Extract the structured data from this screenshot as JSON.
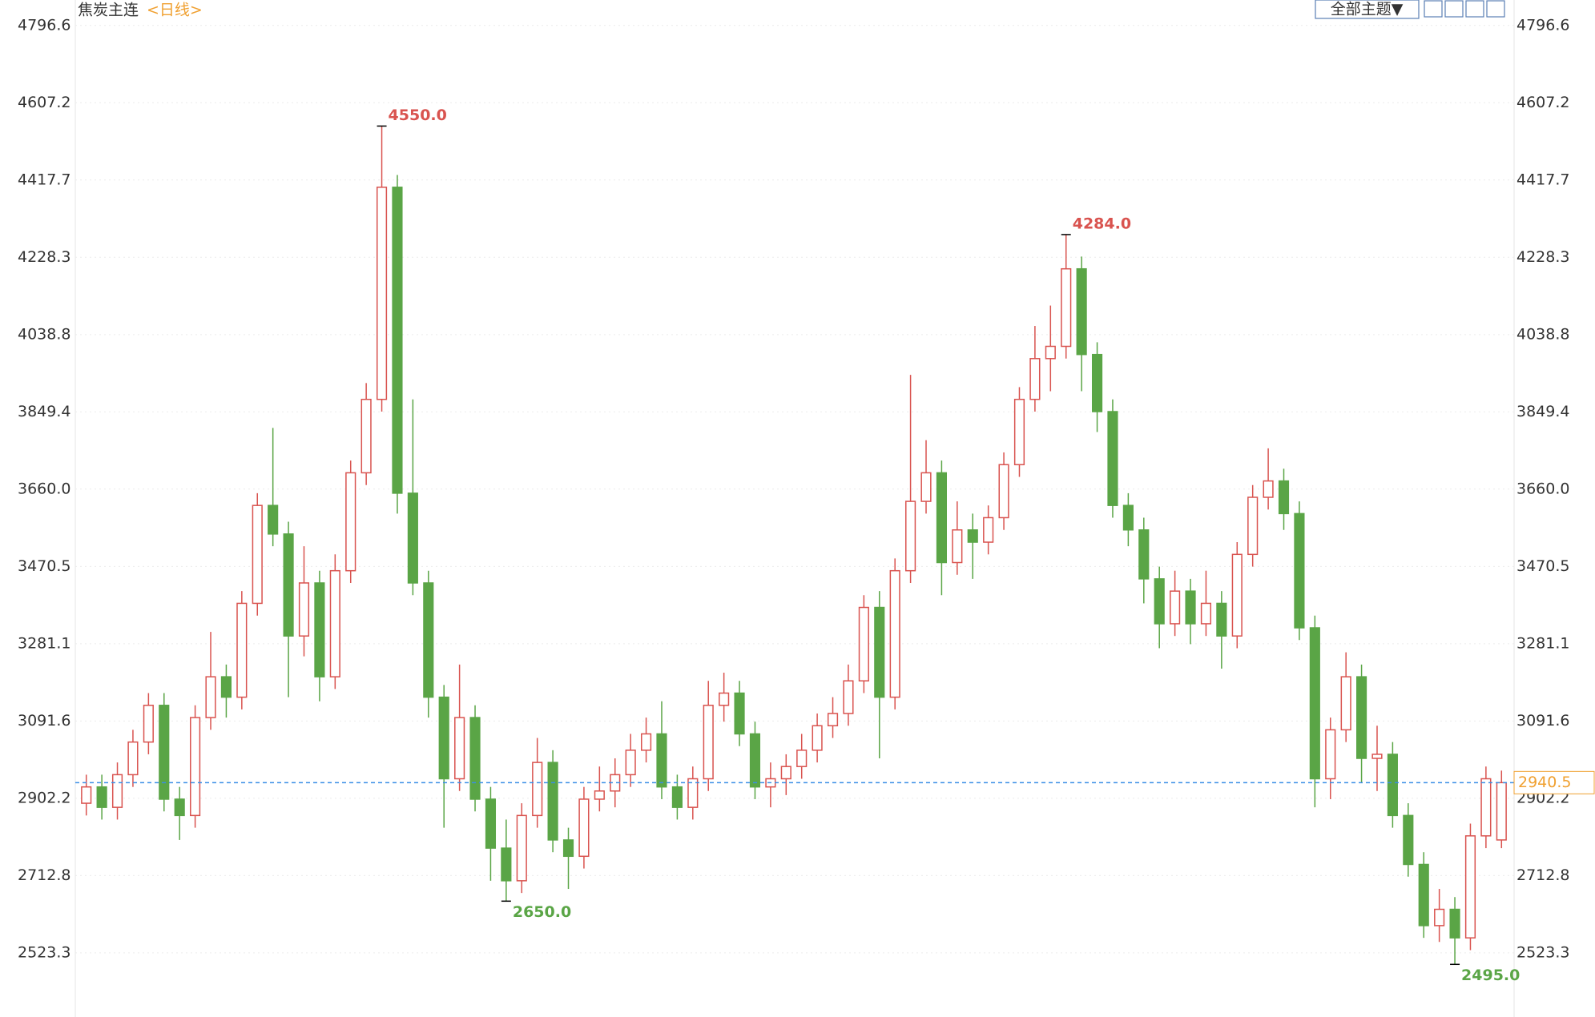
{
  "header": {
    "title": "焦炭主连",
    "period": "<日线>",
    "theme_button": "全部主题▼"
  },
  "chart_data": {
    "type": "candlestick",
    "up_color": "#d9534f",
    "down_color": "#5aa546",
    "ylim": [
      2366,
      4859
    ],
    "yticks": [
      2523.3,
      2712.8,
      2902.2,
      3091.6,
      3281.1,
      3470.5,
      {
        "value": 3660,
        "label": "3660.0"
      },
      3849.4,
      4038.8,
      4228.3,
      4417.7,
      4607.2,
      4796.6
    ],
    "open": [
      2890,
      2930,
      2880,
      2960,
      3040,
      3130,
      2900,
      2860,
      3100,
      3200,
      3150,
      3380,
      3620,
      3550,
      3300,
      3430,
      3200,
      3460,
      3700,
      3880,
      4400,
      3650,
      3430,
      3150,
      2950,
      3100,
      2900,
      2780,
      2700,
      2860,
      2990,
      2800,
      2760,
      2900,
      2920,
      2960,
      3020,
      3060,
      2930,
      2880,
      2950,
      3130,
      3160,
      3060,
      2930,
      2950,
      2980,
      3020,
      3080,
      3110,
      3190,
      3370,
      3150,
      3460,
      3630,
      3700,
      3480,
      3560,
      3530,
      3590,
      3720,
      3880,
      3980,
      4010,
      4200,
      3990,
      3850,
      3620,
      3560,
      3440,
      3330,
      3410,
      3330,
      3380,
      3300,
      3500,
      3640,
      3680,
      3600,
      3320,
      2950,
      3070,
      3200,
      3000,
      3010,
      2860,
      2740,
      2590,
      2630,
      2560,
      2810,
      2800
    ],
    "high": [
      2960,
      2960,
      2990,
      3070,
      3160,
      3160,
      2930,
      3130,
      3310,
      3230,
      3410,
      3650,
      3810,
      3580,
      3520,
      3460,
      3500,
      3730,
      3920,
      4550,
      4430,
      3880,
      3460,
      3180,
      3230,
      3130,
      2930,
      2850,
      2890,
      3050,
      3020,
      2830,
      2930,
      2980,
      3000,
      3060,
      3100,
      3140,
      2960,
      2980,
      3190,
      3210,
      3190,
      3090,
      2990,
      3010,
      3060,
      3110,
      3150,
      3230,
      3400,
      3410,
      3490,
      3940,
      3780,
      3730,
      3630,
      3600,
      3620,
      3750,
      3910,
      4060,
      4110,
      4284,
      4230,
      4020,
      3880,
      3650,
      3590,
      3470,
      3460,
      3440,
      3460,
      3410,
      3530,
      3670,
      3760,
      3710,
      3630,
      3350,
      3100,
      3260,
      3230,
      3080,
      3040,
      2890,
      2770,
      2680,
      2660,
      2840,
      2980,
      2970
    ],
    "low": [
      2860,
      2850,
      2850,
      2930,
      3010,
      2870,
      2800,
      2830,
      3070,
      3100,
      3120,
      3350,
      3520,
      3150,
      3250,
      3140,
      3170,
      3430,
      3670,
      3850,
      3600,
      3400,
      3100,
      2830,
      2920,
      2870,
      2700,
      2650,
      2670,
      2830,
      2770,
      2680,
      2730,
      2870,
      2880,
      2930,
      2990,
      2900,
      2850,
      2850,
      2920,
      3090,
      3030,
      2900,
      2880,
      2910,
      2950,
      2990,
      3050,
      3080,
      3160,
      3000,
      3120,
      3430,
      3600,
      3400,
      3450,
      3440,
      3500,
      3560,
      3690,
      3850,
      3900,
      3980,
      3900,
      3800,
      3590,
      3520,
      3380,
      3270,
      3300,
      3280,
      3300,
      3220,
      3270,
      3470,
      3610,
      3560,
      3290,
      2880,
      2900,
      3040,
      2940,
      2920,
      2830,
      2710,
      2560,
      2550,
      2495,
      2530,
      2780,
      2780
    ],
    "close": [
      2930,
      2880,
      2960,
      3040,
      3130,
      2900,
      2860,
      3100,
      3200,
      3150,
      3380,
      3620,
      3550,
      3300,
      3430,
      3200,
      3460,
      3700,
      3880,
      4400,
      3650,
      3430,
      3150,
      2950,
      3100,
      2900,
      2780,
      2700,
      2860,
      2990,
      2800,
      2760,
      2900,
      2920,
      2960,
      3020,
      3060,
      2930,
      2880,
      2950,
      3130,
      3160,
      3060,
      2930,
      2950,
      2980,
      3020,
      3080,
      3110,
      3190,
      3370,
      3150,
      3460,
      3630,
      3700,
      3480,
      3560,
      3530,
      3590,
      3720,
      3880,
      3980,
      4010,
      4200,
      3990,
      3850,
      3620,
      3560,
      3440,
      3330,
      3410,
      3330,
      3380,
      3300,
      3500,
      3640,
      3680,
      3600,
      3320,
      2950,
      3070,
      3200,
      3000,
      3010,
      2860,
      2740,
      2590,
      2630,
      2560,
      2810,
      2950,
      2940.5
    ],
    "annotations": [
      {
        "value": 4550,
        "label": "4550.0",
        "kind": "high",
        "color": "#d9534f"
      },
      {
        "value": 2650,
        "label": "2650.0",
        "kind": "low",
        "color": "#5aa546"
      },
      {
        "value": 4284,
        "label": "4284.0",
        "kind": "high",
        "color": "#d9534f"
      },
      {
        "value": 2495,
        "label": "2495.0",
        "kind": "low",
        "color": "#5aa546"
      }
    ],
    "last_price": {
      "value": 2940.5,
      "label": "2940.5",
      "color": "#f0a030"
    }
  }
}
